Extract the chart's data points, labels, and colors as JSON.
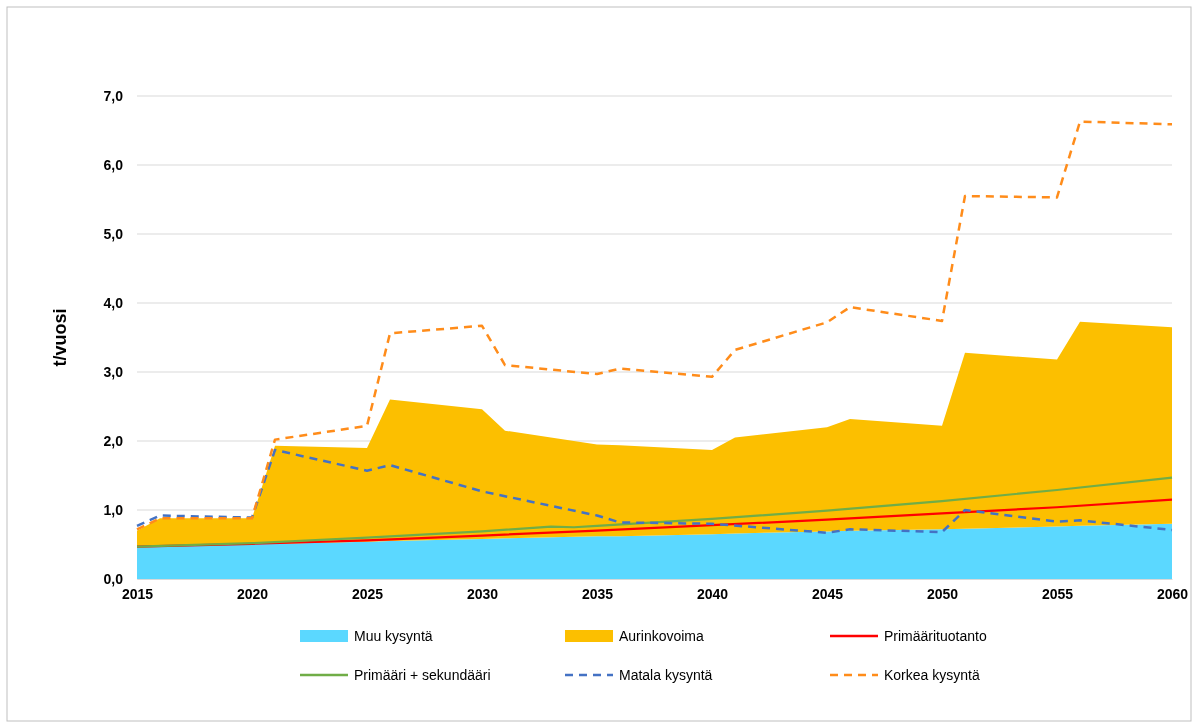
{
  "chart_data": {
    "type": "area",
    "stacked": true,
    "ylabel": "t/vuosi",
    "xlim": [
      2015,
      2060
    ],
    "xticks": [
      2015,
      2020,
      2025,
      2030,
      2035,
      2040,
      2045,
      2050,
      2055,
      2060
    ],
    "ylim": [
      0,
      7
    ],
    "yticks": [
      {
        "value": 0,
        "label": "0,0"
      },
      {
        "value": 1,
        "label": "1,0"
      },
      {
        "value": 2,
        "label": "2,0"
      },
      {
        "value": 3,
        "label": "3,0"
      },
      {
        "value": 4,
        "label": "4,0"
      },
      {
        "value": 5,
        "label": "5,0"
      },
      {
        "value": 6,
        "label": "6,0"
      },
      {
        "value": 7,
        "label": "7,0"
      }
    ],
    "grid": "y",
    "legend": "bottom",
    "series": [
      {
        "name": "Muu kysyntä",
        "color": "#5bd8ff",
        "x": [
          2015,
          2016,
          2020,
          2021,
          2025,
          2026,
          2030,
          2031,
          2035,
          2036,
          2040,
          2041,
          2045,
          2046,
          2050,
          2051,
          2055,
          2056,
          2060
        ],
        "values": [
          0.47,
          0.48,
          0.51,
          0.51,
          0.54,
          0.55,
          0.58,
          0.59,
          0.62,
          0.62,
          0.65,
          0.66,
          0.69,
          0.7,
          0.72,
          0.73,
          0.76,
          0.77,
          0.8
        ]
      },
      {
        "name": "Aurinkovoima",
        "color": "#fcbf00",
        "x": [
          2015,
          2016,
          2020,
          2021,
          2025,
          2026,
          2030,
          2031,
          2035,
          2036,
          2040,
          2041,
          2045,
          2046,
          2050,
          2051,
          2055,
          2056,
          2060
        ],
        "values": [
          0.23,
          0.4,
          0.37,
          1.42,
          1.36,
          2.05,
          1.88,
          1.56,
          1.33,
          1.32,
          1.22,
          1.39,
          1.51,
          1.62,
          1.5,
          2.55,
          2.42,
          2.96,
          2.85
        ]
      },
      {
        "name": "Primäärituotanto",
        "type": "line",
        "line_style": "solid",
        "color": "#ff0000",
        "x": [
          2015,
          2020,
          2025,
          2030,
          2035,
          2040,
          2045,
          2050,
          2055,
          2060
        ],
        "values": [
          0.47,
          0.51,
          0.56,
          0.63,
          0.7,
          0.78,
          0.86,
          0.95,
          1.04,
          1.15
        ]
      },
      {
        "name": "Primääri + sekundääri",
        "type": "line",
        "line_style": "solid",
        "color": "#70ad47",
        "x": [
          2015,
          2020,
          2025,
          2030,
          2033,
          2034,
          2035,
          2040,
          2045,
          2050,
          2055,
          2060
        ],
        "values": [
          0.47,
          0.52,
          0.6,
          0.69,
          0.76,
          0.75,
          0.77,
          0.87,
          0.99,
          1.13,
          1.29,
          1.47
        ]
      },
      {
        "name": "Matala kysyntä",
        "type": "line",
        "line_style": "dashed",
        "color": "#4472c4",
        "x": [
          2015,
          2016,
          2020,
          2021,
          2025,
          2026,
          2030,
          2035,
          2036,
          2040,
          2045,
          2046,
          2050,
          2051,
          2055,
          2056,
          2060
        ],
        "values": [
          0.77,
          0.92,
          0.89,
          1.87,
          1.57,
          1.65,
          1.27,
          0.92,
          0.82,
          0.8,
          0.67,
          0.72,
          0.68,
          1.0,
          0.83,
          0.85,
          0.71
        ]
      },
      {
        "name": "Korkea kysyntä",
        "type": "line",
        "line_style": "dashed",
        "color": "#ff8c1a",
        "x": [
          2015,
          2016,
          2020,
          2021,
          2025,
          2026,
          2030,
          2031,
          2035,
          2036,
          2040,
          2041,
          2045,
          2046,
          2050,
          2051,
          2055,
          2056,
          2060
        ],
        "values": [
          0.72,
          0.88,
          0.88,
          2.02,
          2.22,
          3.56,
          3.67,
          3.1,
          2.97,
          3.05,
          2.93,
          3.32,
          3.72,
          3.94,
          3.74,
          5.55,
          5.53,
          6.63,
          6.59
        ]
      }
    ]
  }
}
